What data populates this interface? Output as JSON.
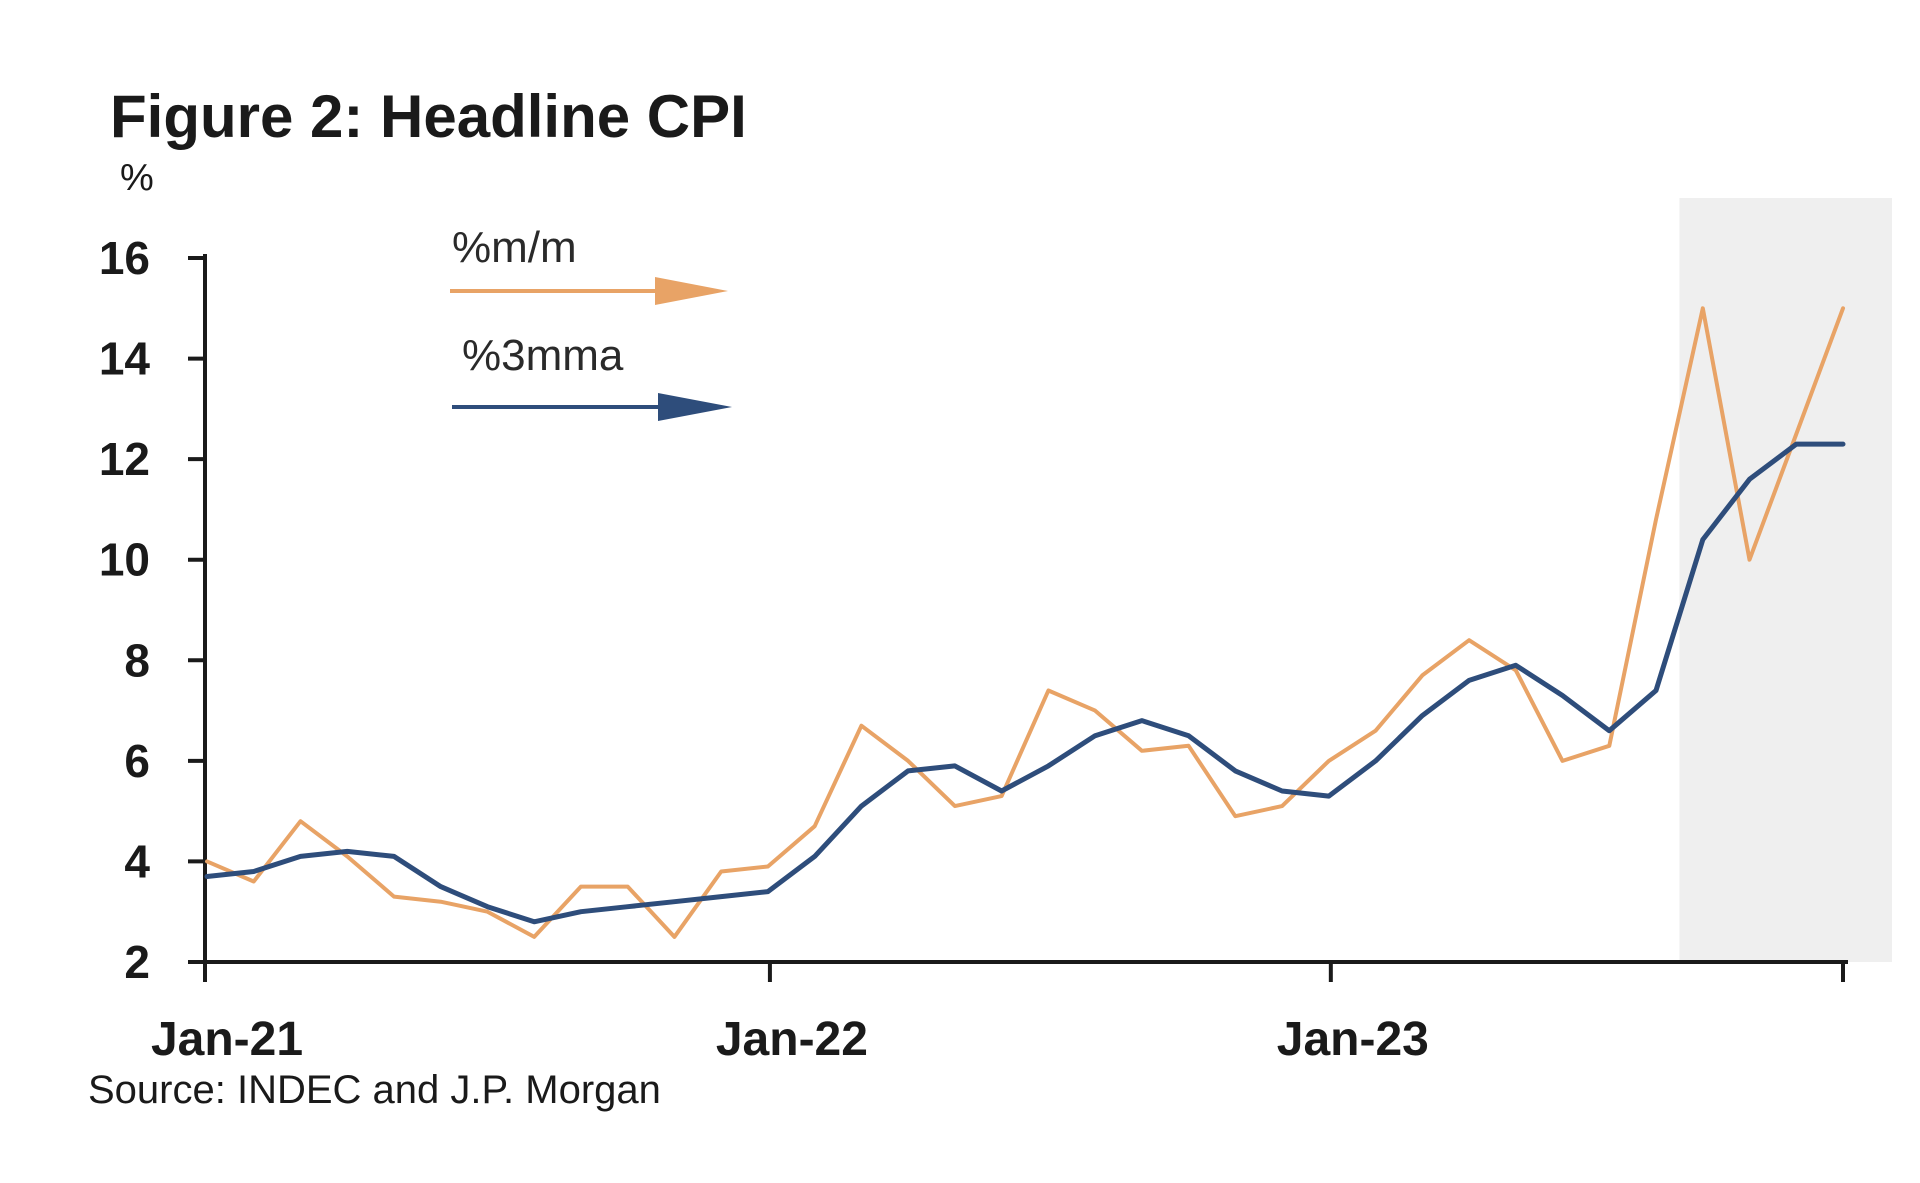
{
  "chart_data": {
    "type": "line",
    "title": "Figure 2: Headline CPI",
    "ylabel": "%",
    "xlabel": "",
    "ylim": [
      2,
      16
    ],
    "yticks": [
      2,
      4,
      6,
      8,
      10,
      12,
      14,
      16
    ],
    "xticks": [
      {
        "label": "Jan-21",
        "index": 0
      },
      {
        "label": "Jan-22",
        "index": 12
      },
      {
        "label": "Jan-23",
        "index": 24
      }
    ],
    "n_periods": 36,
    "forecast_shade_start_index": 31.5,
    "legend": "top-left, arrow markers",
    "series": [
      {
        "name": "%m/m",
        "color": "#e8a366",
        "start_index": 0,
        "values": [
          4.0,
          3.6,
          4.8,
          4.1,
          3.3,
          3.2,
          3.0,
          2.5,
          3.5,
          3.5,
          2.5,
          3.8,
          3.9,
          4.7,
          6.7,
          6.0,
          5.1,
          5.3,
          7.4,
          7.0,
          6.2,
          6.3,
          4.9,
          5.1,
          6.0,
          6.6,
          7.7,
          8.4,
          7.8,
          6.0,
          6.3,
          10.8,
          15.0,
          10.0,
          12.5,
          15.0
        ]
      },
      {
        "name": "%3mma",
        "color": "#2e4d7b",
        "start_index": 0,
        "values": [
          3.7,
          3.8,
          4.1,
          4.2,
          4.1,
          3.5,
          3.1,
          2.8,
          3.0,
          3.1,
          3.2,
          3.3,
          3.4,
          4.1,
          5.1,
          5.8,
          5.9,
          5.4,
          5.9,
          6.5,
          6.8,
          6.5,
          5.8,
          5.4,
          5.3,
          6.0,
          6.9,
          7.6,
          7.9,
          7.3,
          6.6,
          7.4,
          10.4,
          11.6,
          12.3,
          12.3
        ]
      }
    ]
  },
  "source": "Source: INDEC and J.P. Morgan"
}
